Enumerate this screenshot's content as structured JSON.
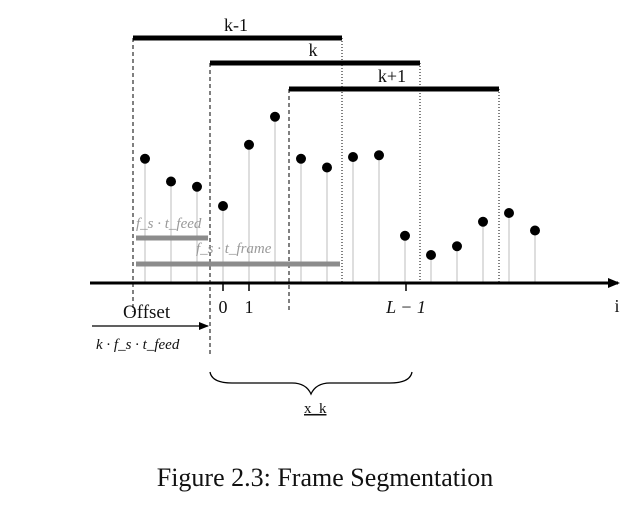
{
  "frames": [
    {
      "label": "k-1"
    },
    {
      "label": "k"
    },
    {
      "label": "k+1"
    }
  ],
  "gray_bars": {
    "feed_label": "f_s · t_feed",
    "frame_label": "f_s · t_frame"
  },
  "axis": {
    "var_label": "i",
    "ticks": [
      "0",
      "1",
      "L − 1"
    ]
  },
  "offset": {
    "label": "Offset",
    "formula": "k · f_s · t_feed"
  },
  "brace_label": "x_k",
  "caption": "Figure 2.3: Frame Segmentation",
  "samples": {
    "values": [
      0.71,
      0.58,
      0.55,
      0.44,
      0.79,
      0.95,
      0.71,
      0.66,
      0.72,
      0.73,
      0.27,
      0.16,
      0.21,
      0.35,
      0.4,
      0.3
    ]
  },
  "colors": {
    "frame_bar": "#000000",
    "gray_bar": "#8c8c8c",
    "stem": "#bdbdbd",
    "dot": "#000000"
  }
}
